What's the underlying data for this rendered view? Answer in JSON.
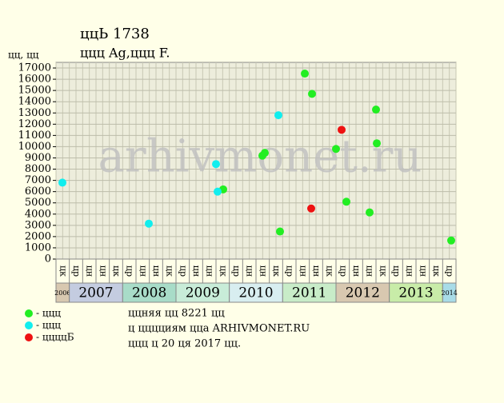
{
  "chart_data": {
    "type": "scatter",
    "title": "ццЬ 1738",
    "subtitle": "ццц Ag,ццц F.",
    "y_label": "цц, цц",
    "watermark": "arhivmonet.ru",
    "xlim": [
      2006.75,
      2014.25
    ],
    "ylim": [
      0,
      17500
    ],
    "yticks": [
      0,
      1000,
      2000,
      3000,
      4000,
      5000,
      6000,
      7000,
      8000,
      9000,
      10000,
      11000,
      12000,
      13000,
      14000,
      15000,
      16000,
      17000
    ],
    "grid": true,
    "column_labels": [
      "цк",
      "цр",
      "цн",
      "цн",
      "цк",
      "цр",
      "цн",
      "цн",
      "цк",
      "цр",
      "цн",
      "цн",
      "цк",
      "цр",
      "цн",
      "цн",
      "цк",
      "цр",
      "цн",
      "цн",
      "цк",
      "цр",
      "цн",
      "цн",
      "цк",
      "цр",
      "цн",
      "цн",
      "цк",
      "цр"
    ],
    "year_bands": [
      2006,
      2007,
      2008,
      2009,
      2010,
      2011,
      2012,
      2013,
      2014
    ],
    "year_band_colors": [
      "#d8c8b0",
      "#c4cce0",
      "#a8dcc8",
      "#c8ecd8",
      "#d8eef0",
      "#c8ecc8",
      "#d8c8b0",
      "#c8eca8",
      "#a8dce8"
    ],
    "series": [
      {
        "name": "- ццц",
        "color": "#22ee22",
        "x": [
          2009.885,
          2010.62,
          2010.665,
          2010.95,
          2011.415,
          2011.55,
          2012.0,
          2012.195,
          2012.63,
          2012.75,
          2012.765,
          2014.16
        ],
        "values": [
          6200,
          9200,
          9450,
          2450,
          16500,
          14700,
          9800,
          5100,
          4150,
          13300,
          10300,
          1650
        ]
      },
      {
        "name": "- ццц",
        "color": "#11eeee",
        "x": [
          2006.87,
          2008.49,
          2009.75,
          2009.78,
          2010.92
        ],
        "values": [
          6800,
          3150,
          8450,
          6000,
          12800
        ]
      },
      {
        "name": "- ццццБ",
        "color": "#ee1111",
        "x": [
          2011.535,
          2012.105
        ],
        "values": [
          4500,
          11500
        ]
      }
    ],
    "notes": [
      "ццняя цц 8221 цц",
      "ц цццциям цца ARHIVMONET.RU",
      "ццц ц 20 ця 2017 цц."
    ]
  }
}
